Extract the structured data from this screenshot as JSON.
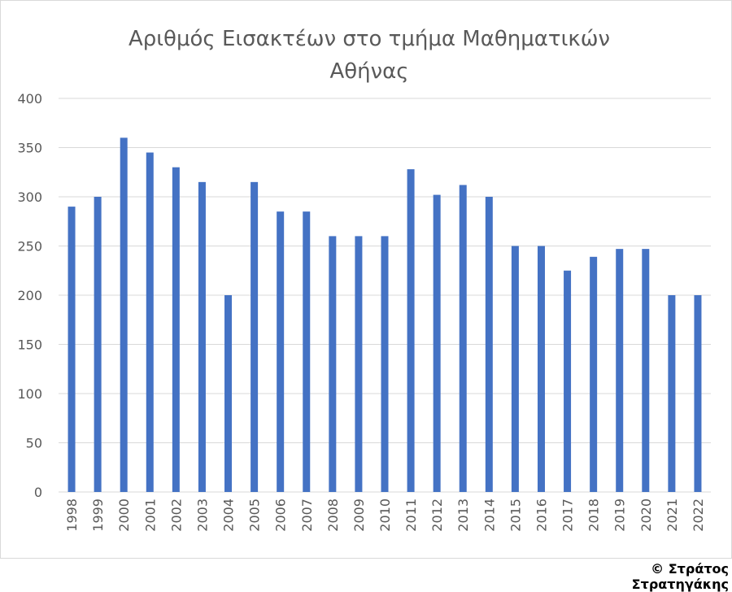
{
  "chart_data": {
    "type": "bar",
    "title_lines": [
      "Αριθμός Εισακτέων στο τμήμα Μαθηματικών",
      "Αθήνας"
    ],
    "categories": [
      "1998",
      "1999",
      "2000",
      "2001",
      "2002",
      "2003",
      "2004",
      "2005",
      "2006",
      "2007",
      "2008",
      "2009",
      "2010",
      "2011",
      "2012",
      "2013",
      "2014",
      "2015",
      "2016",
      "2017",
      "2018",
      "2019",
      "2020",
      "2021",
      "2022"
    ],
    "values": [
      290,
      300,
      360,
      345,
      330,
      315,
      200,
      315,
      285,
      285,
      260,
      260,
      260,
      328,
      302,
      312,
      300,
      250,
      250,
      225,
      239,
      247,
      247,
      200,
      200
    ],
    "ylim": [
      0,
      400
    ],
    "yticks": [
      0,
      50,
      100,
      150,
      200,
      250,
      300,
      350,
      400
    ],
    "grid": true,
    "legend": "none",
    "bar_color": "#4472c4",
    "gridline_color": "#d9d9d9",
    "text_color": "#595959"
  },
  "footer": {
    "copyright": "© Στράτος Στρατηγάκης"
  }
}
